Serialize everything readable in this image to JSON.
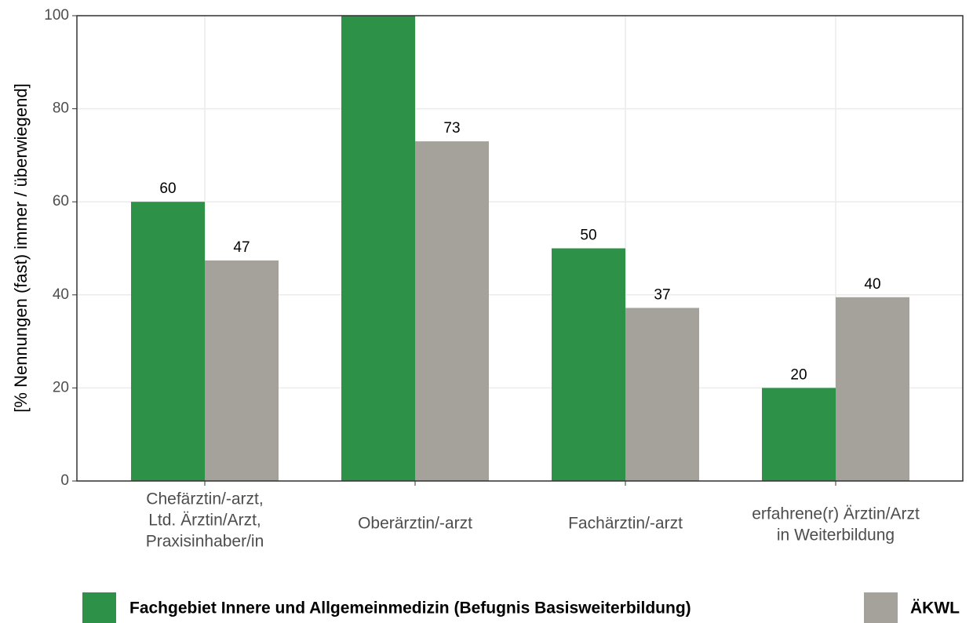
{
  "chart_data": {
    "type": "bar",
    "y_label": "[% Nennungen (fast) immer / überwiegend]",
    "categories": [
      [
        "Chefärztin/-arzt,",
        "Ltd. Ärztin/Arzt,",
        "Praxisinhaber/in"
      ],
      [
        "Oberärztin/-arzt"
      ],
      [
        "Fachärztin/-arzt"
      ],
      [
        "erfahrene(r) Ärztin/Arzt",
        "in Weiterbildung"
      ]
    ],
    "series": [
      {
        "name": "Fachgebiet Innere und Allgemeinmedizin (Befugnis Basisweiterbildung)",
        "color": "#2e9148",
        "values": [
          60,
          100,
          50,
          20
        ],
        "value_labels": [
          "60",
          null,
          "50",
          "20"
        ]
      },
      {
        "name": "ÄKWL",
        "color": "#a5a29b",
        "values": [
          47.4,
          73,
          37.2,
          39.5
        ],
        "value_labels": [
          "47",
          "73",
          "37",
          "40"
        ]
      }
    ],
    "ylim": [
      0,
      100
    ],
    "yticks": [
      0,
      20,
      40,
      60,
      80,
      100
    ],
    "grid": true,
    "legend": "bottom"
  }
}
